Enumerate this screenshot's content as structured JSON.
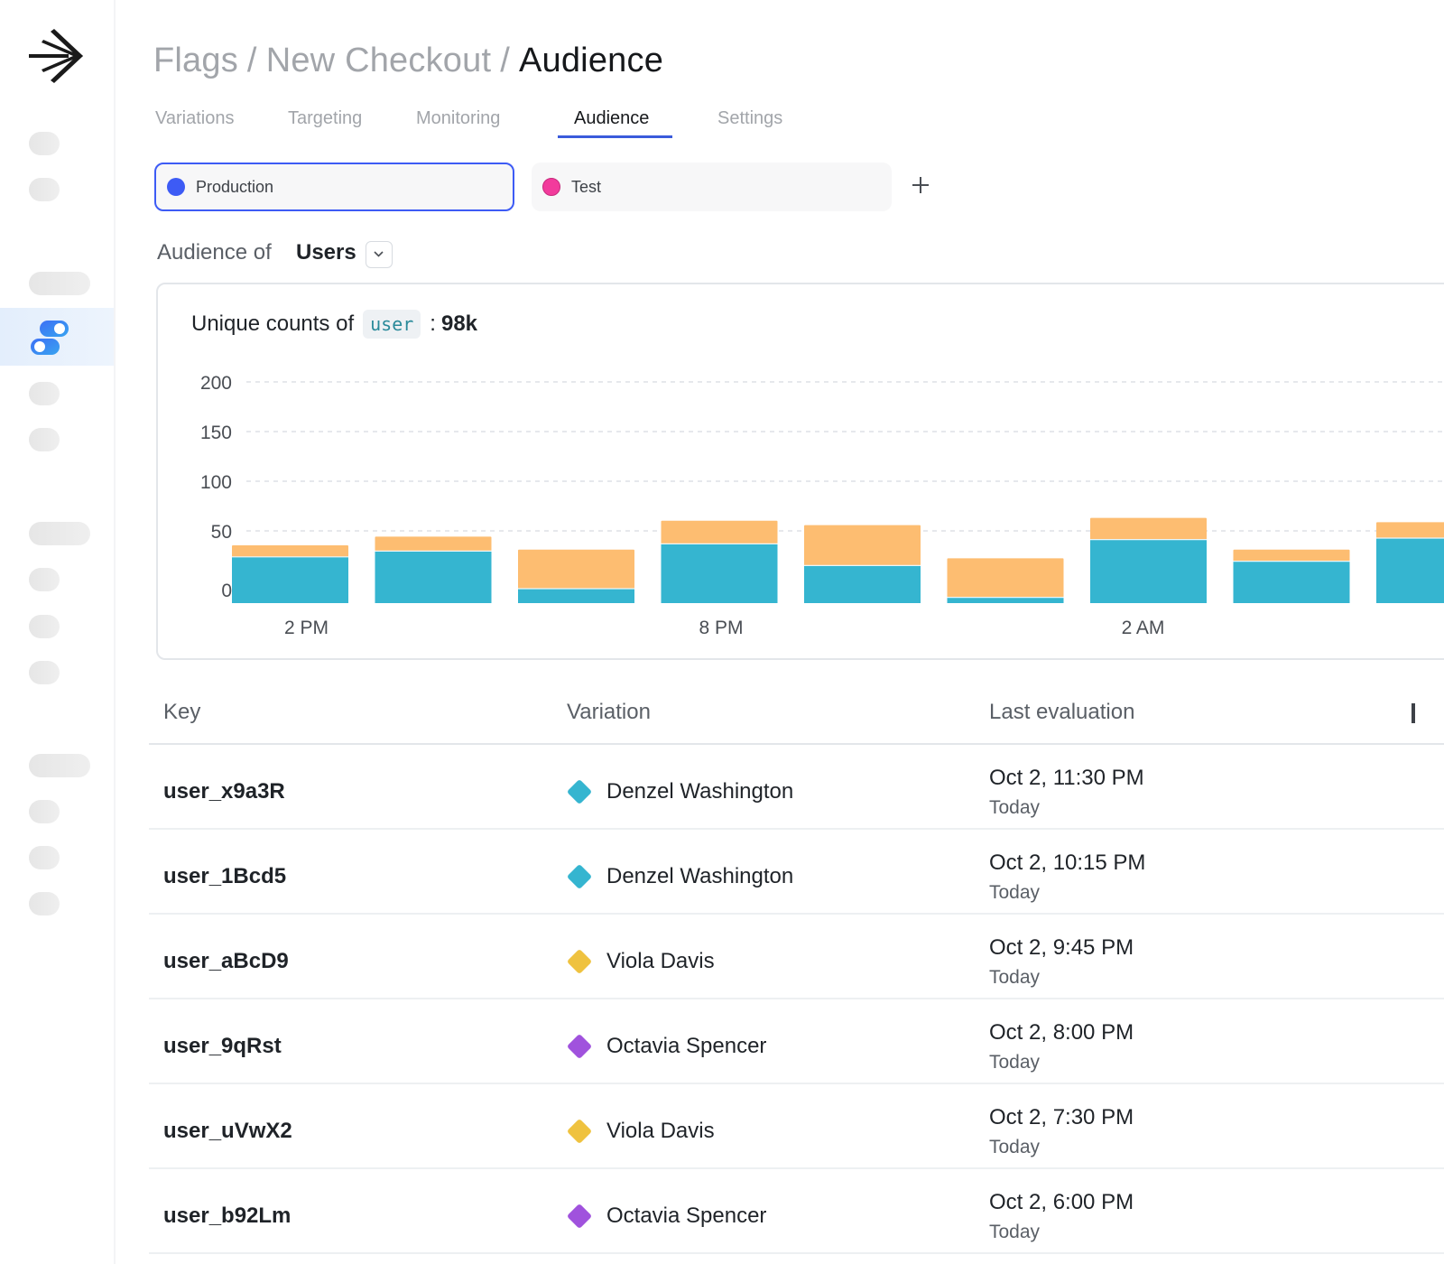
{
  "app": {
    "logo": "arrow-burst-logo"
  },
  "sidebar": {
    "active_item": "feature-flags",
    "items": [
      {
        "name": "placeholder-1"
      },
      {
        "name": "placeholder-2"
      },
      {
        "name": "section-1"
      },
      {
        "name": "feature-flags",
        "icon": "toggle-icon"
      },
      {
        "name": "placeholder-3"
      },
      {
        "name": "placeholder-4"
      },
      {
        "name": "section-2"
      },
      {
        "name": "placeholder-5"
      },
      {
        "name": "placeholder-6"
      },
      {
        "name": "placeholder-7"
      },
      {
        "name": "section-3"
      },
      {
        "name": "placeholder-8"
      },
      {
        "name": "placeholder-9"
      },
      {
        "name": "placeholder-10"
      }
    ]
  },
  "breadcrumb": {
    "items": [
      "Flags",
      "New Checkout"
    ],
    "separator": "/",
    "current": "Audience"
  },
  "tabs": [
    {
      "label": "Variations",
      "active": false
    },
    {
      "label": "Targeting",
      "active": false
    },
    {
      "label": "Monitoring",
      "active": false
    },
    {
      "label": "Audience",
      "active": true
    },
    {
      "label": "Settings",
      "active": false
    }
  ],
  "environments": [
    {
      "label": "Production",
      "color": "#3d5bf5",
      "selected": true
    },
    {
      "label": "Test",
      "color": "#f23b9c",
      "selected": false
    }
  ],
  "add_environment_icon": "plus-icon",
  "audience": {
    "prefix": "Audience of",
    "value": "Users"
  },
  "card": {
    "title_prefix": "Unique counts of",
    "code": "user",
    "separator": ":",
    "total": "98k"
  },
  "chart_data": {
    "type": "bar",
    "stacked": true,
    "title": "Unique counts of user : 98k",
    "xlabel": "",
    "ylabel": "",
    "yticks": [
      0,
      50,
      100,
      150,
      200
    ],
    "ylim": [
      0,
      200
    ],
    "grid": true,
    "xtick_labels": [
      {
        "index": 0,
        "label": "2 PM"
      },
      {
        "index": 3,
        "label": "8 PM"
      },
      {
        "index": 6,
        "label": "2 AM"
      }
    ],
    "categories": [
      "2 PM",
      "4 PM",
      "6 PM",
      "8 PM",
      "10 PM",
      "12 AM",
      "2 AM",
      "4 AM",
      "6 AM"
    ],
    "series": [
      {
        "name": "primary",
        "color": "#35b5d0",
        "values": [
          32,
          36,
          10,
          41,
          26,
          4,
          44,
          29,
          45
        ]
      },
      {
        "name": "secondary",
        "color": "#fdbd71",
        "values": [
          8,
          10,
          27,
          16,
          28,
          27,
          15,
          8,
          11
        ]
      }
    ]
  },
  "table": {
    "columns": [
      "Key",
      "Variation",
      "Last evaluation"
    ],
    "rows": [
      {
        "key": "user_x9a3R",
        "variation": "Denzel Washington",
        "variation_color": "#35b5d0",
        "last_evaluation": "Oct 2, 11:30 PM",
        "relative": "Today"
      },
      {
        "key": "user_1Bcd5",
        "variation": "Denzel Washington",
        "variation_color": "#35b5d0",
        "last_evaluation": "Oct 2, 10:15 PM",
        "relative": "Today"
      },
      {
        "key": "user_aBcD9",
        "variation": "Viola Davis",
        "variation_color": "#efc23f",
        "last_evaluation": "Oct 2, 9:45 PM",
        "relative": "Today"
      },
      {
        "key": "user_9qRst",
        "variation": "Octavia Spencer",
        "variation_color": "#a052dd",
        "last_evaluation": "Oct 2, 8:00 PM",
        "relative": "Today"
      },
      {
        "key": "user_uVwX2",
        "variation": "Viola Davis",
        "variation_color": "#efc23f",
        "last_evaluation": "Oct 2, 7:30 PM",
        "relative": "Today"
      },
      {
        "key": "user_b92Lm",
        "variation": "Octavia Spencer",
        "variation_color": "#a052dd",
        "last_evaluation": "Oct 2, 6:00 PM",
        "relative": "Today"
      }
    ]
  }
}
